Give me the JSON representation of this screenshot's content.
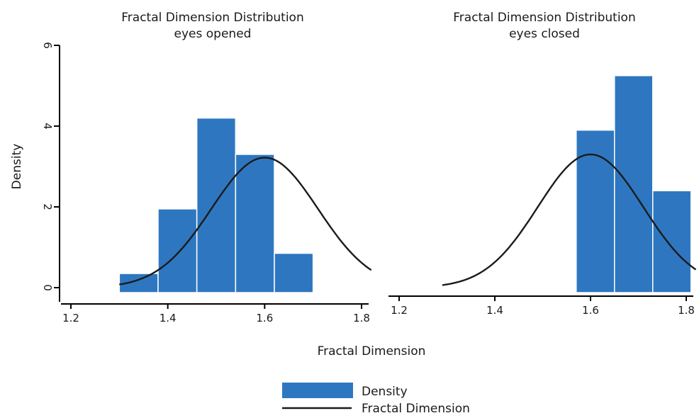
{
  "chart_data": [
    {
      "type": "bar",
      "title": "Fractal Dimension Distribution",
      "subtitle": "eyes opened",
      "ylabel": "Density",
      "xlabel": "Fractal Dimension",
      "xlim": [
        1.2,
        1.8
      ],
      "ylim": [
        0,
        6
      ],
      "xticks": [
        "1.2",
        "1.4",
        "1.6",
        "1.8"
      ],
      "yticks": [
        "0",
        "2",
        "4",
        "6"
      ],
      "bins": [
        {
          "x0": 1.3,
          "x1": 1.38,
          "value": 0.35
        },
        {
          "x0": 1.38,
          "x1": 1.46,
          "value": 1.95
        },
        {
          "x0": 1.46,
          "x1": 1.54,
          "value": 4.2
        },
        {
          "x0": 1.54,
          "x1": 1.62,
          "value": 3.3
        },
        {
          "x0": 1.62,
          "x1": 1.7,
          "value": 0.85
        }
      ],
      "curve": {
        "mean": 1.6,
        "sd": 0.11,
        "peak": 3.22,
        "x_from": 1.3,
        "x_to": 1.82
      }
    },
    {
      "type": "bar",
      "title": "Fractal Dimension Distribution",
      "subtitle": "eyes closed",
      "xlim": [
        1.2,
        1.8
      ],
      "ylim": [
        0,
        6
      ],
      "xticks": [
        "1.2",
        "1.4",
        "1.6",
        "1.8"
      ],
      "bins": [
        {
          "x0": 1.57,
          "x1": 1.65,
          "value": 3.9
        },
        {
          "x0": 1.65,
          "x1": 1.73,
          "value": 5.25
        },
        {
          "x0": 1.73,
          "x1": 1.81,
          "value": 2.4
        }
      ],
      "curve": {
        "mean": 1.6,
        "sd": 0.11,
        "peak": 3.3,
        "x_from": 1.29,
        "x_to": 1.82
      }
    }
  ],
  "legend": {
    "items": [
      {
        "label": "Density",
        "kind": "box"
      },
      {
        "label": "Fractal Dimension",
        "kind": "line"
      }
    ],
    "placement": "bottom-center"
  },
  "colors": {
    "bar": "#2e77c0",
    "curve": "#1b1b1b",
    "axis": "#000000"
  }
}
